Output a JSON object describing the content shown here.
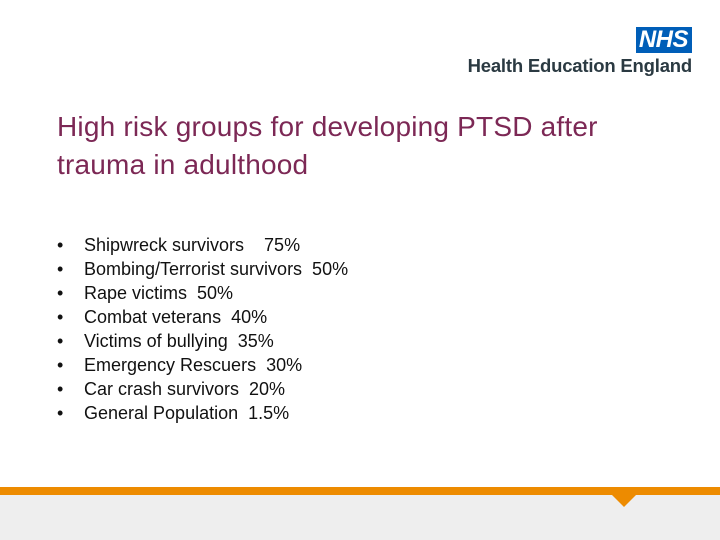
{
  "logo": {
    "badge": "NHS",
    "org": "Health Education England"
  },
  "slide": {
    "title": "High risk groups for developing PTSD after trauma in adulthood",
    "bullet_symbol": "•",
    "items": [
      "Shipwreck survivors    75%",
      "Bombing/Terrorist survivors  50%",
      "Rape victims  50%",
      "Combat veterans  40%",
      "Victims of bullying  35%",
      "Emergency Rescuers  30%",
      "Car crash survivors  20%",
      "General Population  1.5%"
    ]
  },
  "colors": {
    "title": "#7C2855",
    "nhs_blue": "#005EB8",
    "accent_orange": "#ED8B00",
    "footer_grey": "#eeeeee"
  }
}
